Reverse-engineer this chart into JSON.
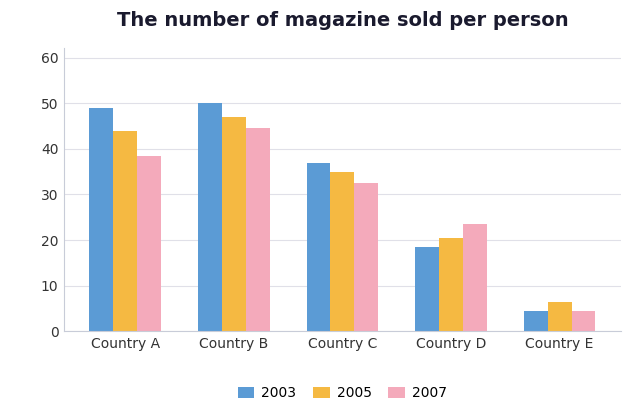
{
  "title": "The number of magazine sold per person",
  "categories": [
    "Country A",
    "Country B",
    "Country C",
    "Country D",
    "Country E"
  ],
  "years": [
    "2003",
    "2005",
    "2007"
  ],
  "values": {
    "2003": [
      49,
      50,
      37,
      18.5,
      4.5
    ],
    "2005": [
      44,
      47,
      35,
      20.5,
      6.5
    ],
    "2007": [
      38.5,
      44.5,
      32.5,
      23.5,
      4.5
    ]
  },
  "colors": {
    "2003": "#5B9BD5",
    "2005": "#F5B942",
    "2007": "#F4AABB"
  },
  "ylim": [
    0,
    62
  ],
  "yticks": [
    0,
    10,
    20,
    30,
    40,
    50,
    60
  ],
  "bar_width": 0.22,
  "title_fontsize": 14,
  "legend_fontsize": 10,
  "tick_fontsize": 10,
  "background_color": "#ffffff",
  "plot_bg_color": "#ffffff",
  "grid_color": "#e0e0e8",
  "spine_color": "#c8ccd8"
}
